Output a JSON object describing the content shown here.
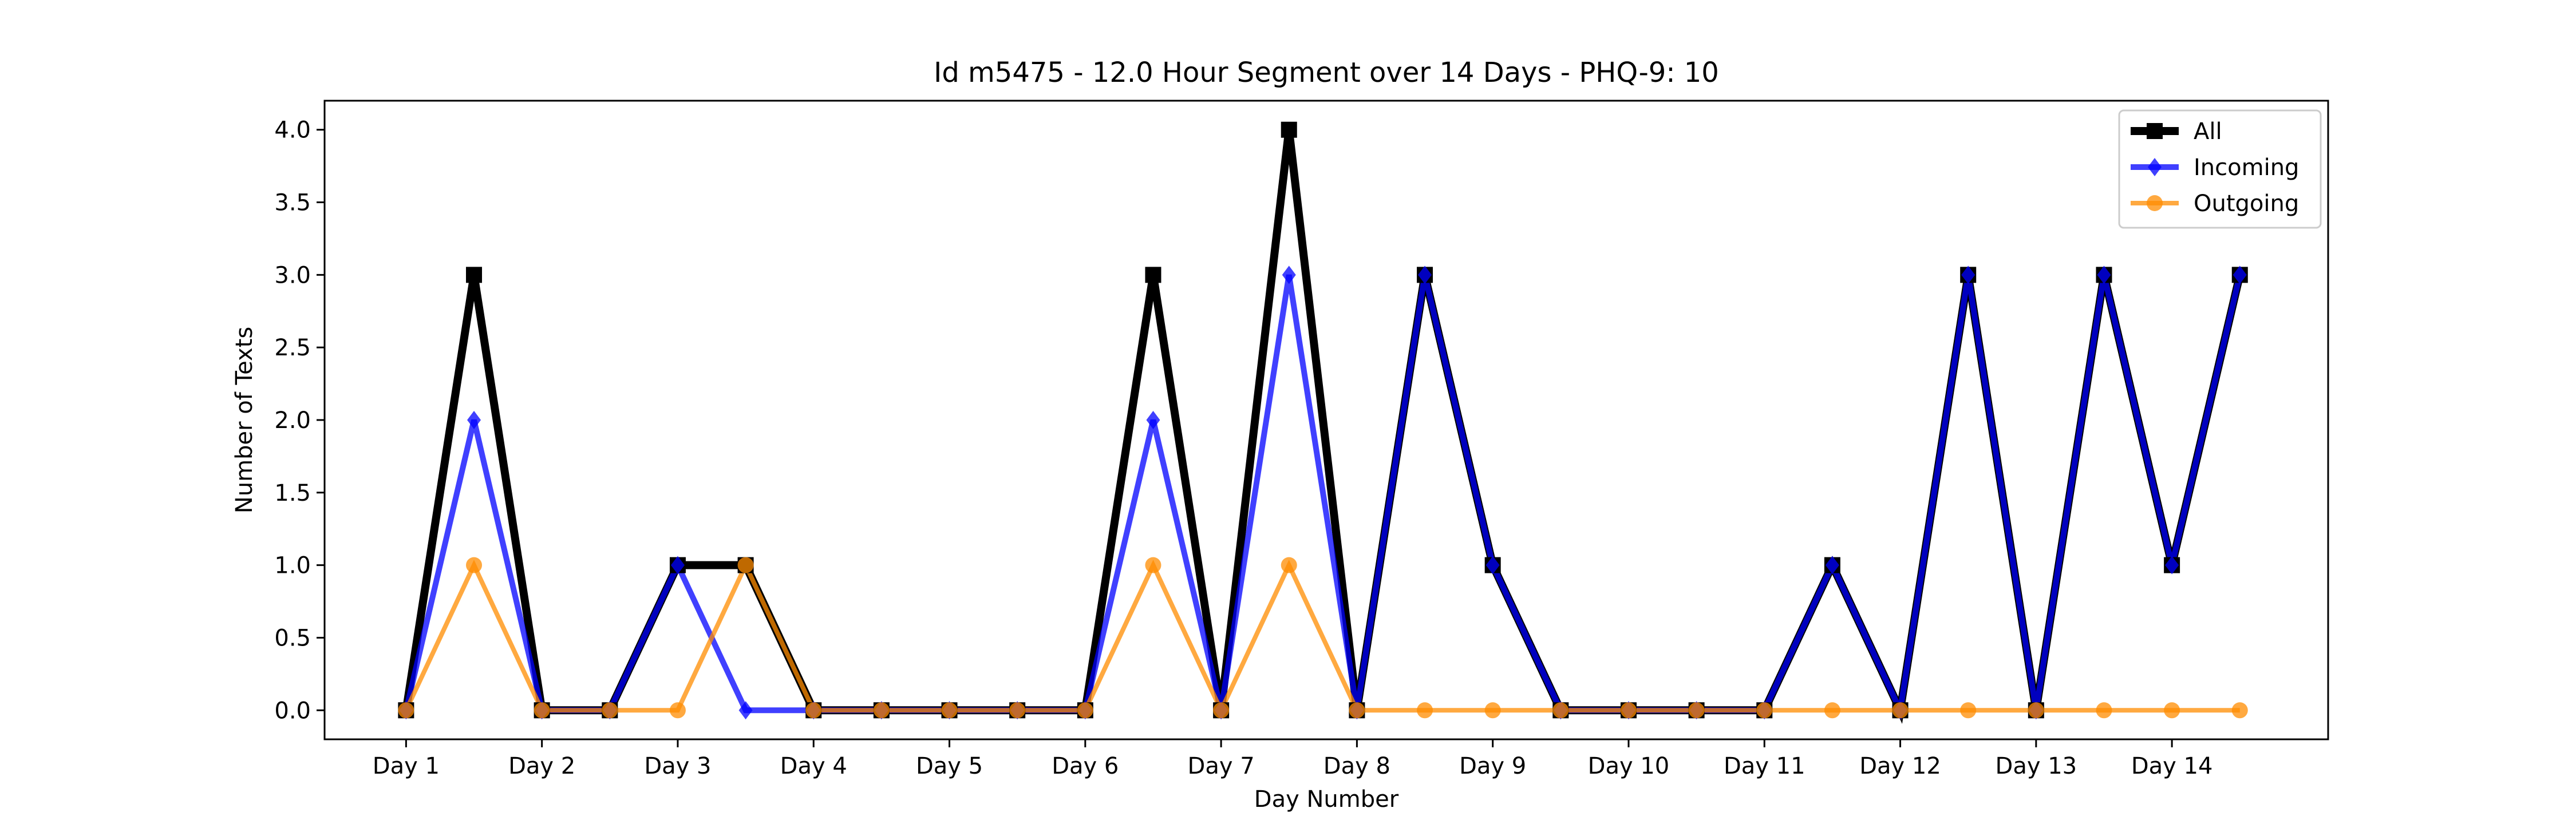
{
  "chart_data": {
    "type": "line",
    "title": "Id m5475 - 12.0 Hour Segment over 14 Days - PHQ-9: 10",
    "xlabel": "Day Number",
    "ylabel": "Number of Texts",
    "x_tick_labels": [
      "Day 1",
      "Day 2",
      "Day 3",
      "Day 4",
      "Day 5",
      "Day 6",
      "Day 7",
      "Day 8",
      "Day 9",
      "Day 10",
      "Day 11",
      "Day 12",
      "Day 13",
      "Day 14"
    ],
    "y_ticks": [
      0.0,
      0.5,
      1.0,
      1.5,
      2.0,
      2.5,
      3.0,
      3.5,
      4.0
    ],
    "x": [
      1,
      1.5,
      2,
      2.5,
      3,
      3.5,
      4,
      4.5,
      5,
      5.5,
      6,
      6.5,
      7,
      7.5,
      8,
      8.5,
      9,
      9.5,
      10,
      10.5,
      11,
      11.5,
      12,
      12.5,
      13,
      13.5,
      14,
      14.5
    ],
    "xlim": [
      0.4,
      15.15
    ],
    "ylim": [
      -0.2,
      4.2
    ],
    "grid": false,
    "legend_position": "top-right",
    "series": [
      {
        "name": "All",
        "color": "#000000",
        "marker": "square",
        "values": [
          0,
          3,
          0,
          0,
          1,
          1,
          0,
          0,
          0,
          0,
          0,
          3,
          0,
          4,
          0,
          3,
          1,
          0,
          0,
          0,
          0,
          1,
          0,
          3,
          0,
          3,
          1,
          3
        ]
      },
      {
        "name": "Incoming",
        "color": "#0000ff",
        "marker": "diamond",
        "values": [
          0,
          2,
          0,
          0,
          1,
          0,
          0,
          0,
          0,
          0,
          0,
          2,
          0,
          3,
          0,
          3,
          1,
          0,
          0,
          0,
          0,
          1,
          0,
          3,
          0,
          3,
          1,
          3
        ]
      },
      {
        "name": "Outgoing",
        "color": "#ff8c00",
        "marker": "circle",
        "values": [
          0,
          1,
          0,
          0,
          0,
          1,
          0,
          0,
          0,
          0,
          0,
          1,
          0,
          1,
          0,
          0,
          0,
          0,
          0,
          0,
          0,
          0,
          0,
          0,
          0,
          0,
          0,
          0
        ]
      }
    ]
  }
}
